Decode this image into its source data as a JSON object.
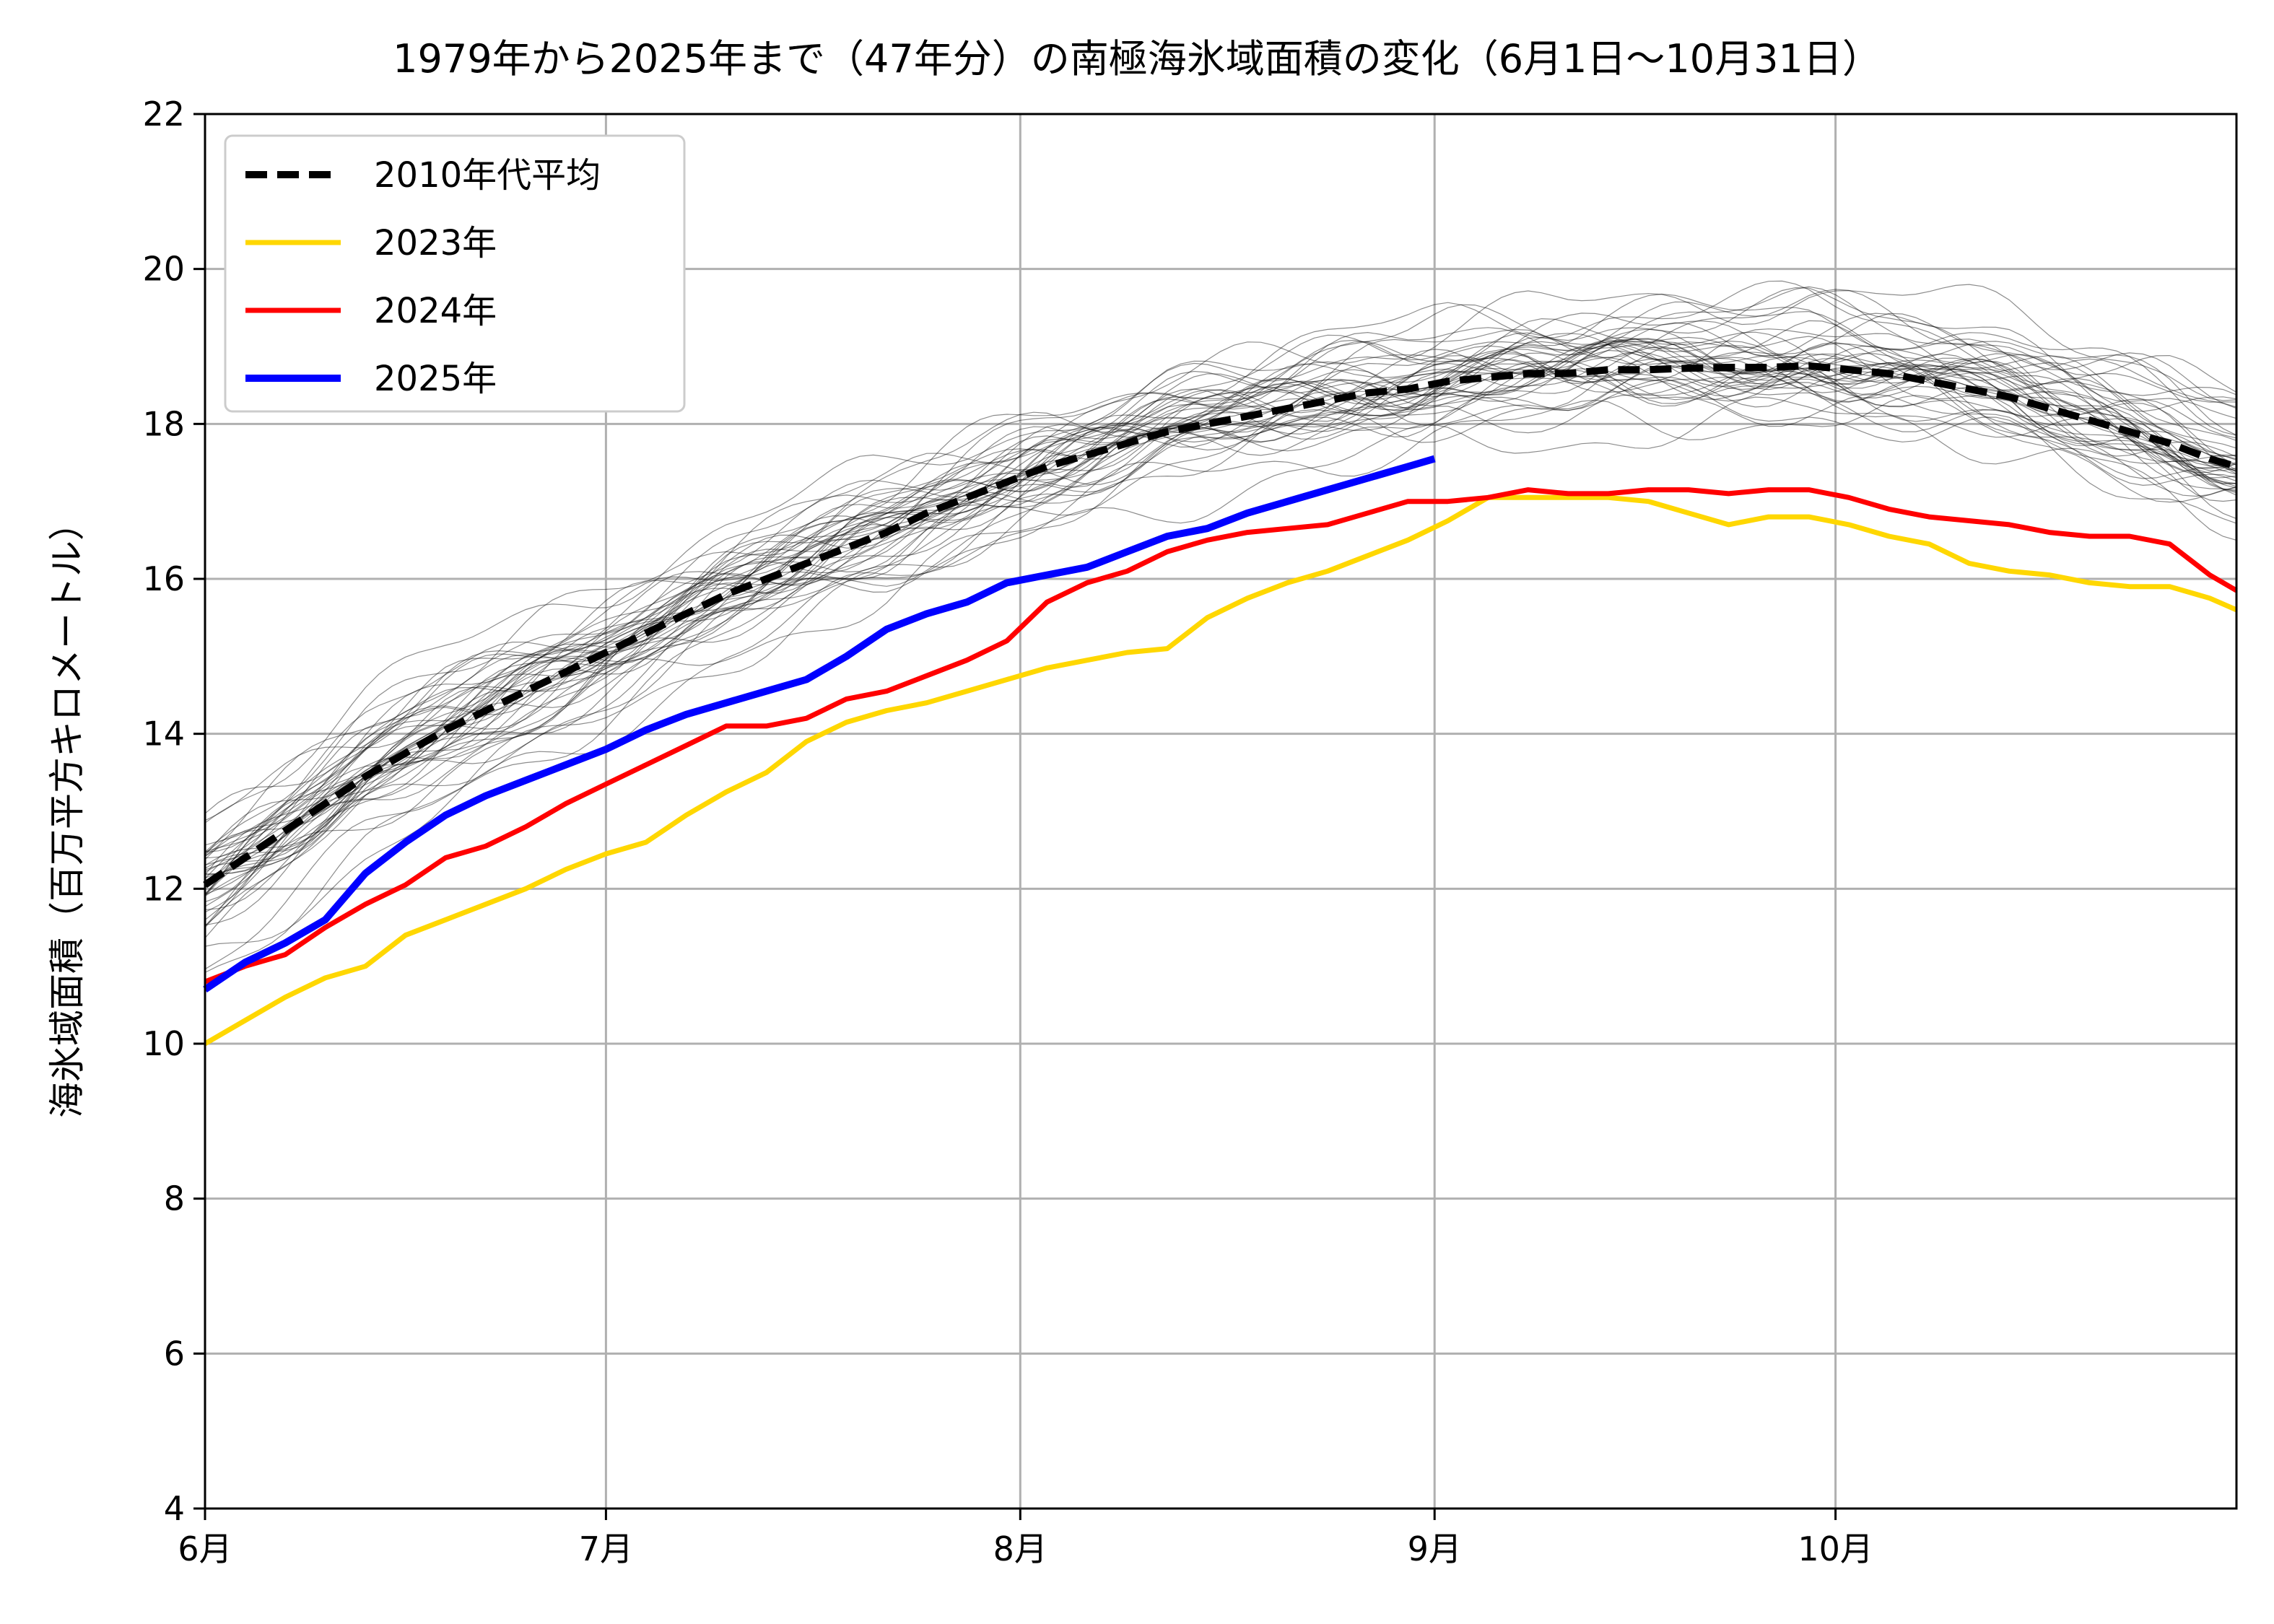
{
  "chart_data": {
    "type": "line",
    "title": "1979年から2025年まで（47年分）の南極海氷域面積の変化（6月1日〜10月31日）",
    "xlabel": "",
    "ylabel": "海氷域面積（百万平方キロメートル）",
    "x_unit": "day of year",
    "xlim": [
      152,
      304
    ],
    "ylim": [
      4,
      22
    ],
    "grid": true,
    "legend_position": "top-left",
    "x_ticks": [
      {
        "x": 152,
        "label": "6月"
      },
      {
        "x": 182,
        "label": "7月"
      },
      {
        "x": 213,
        "label": "8月"
      },
      {
        "x": 244,
        "label": "9月"
      },
      {
        "x": 274,
        "label": "10月"
      }
    ],
    "y_ticks": [
      4,
      6,
      8,
      10,
      12,
      14,
      16,
      18,
      20,
      22
    ],
    "series": [
      {
        "name": "2010年代平均",
        "color": "#000000",
        "style": "dashed",
        "x": [
          152,
          155,
          158,
          161,
          164,
          167,
          170,
          173,
          176,
          179,
          182,
          185,
          188,
          191,
          194,
          197,
          200,
          203,
          206,
          209,
          212,
          215,
          218,
          221,
          224,
          227,
          230,
          233,
          236,
          239,
          242,
          245,
          248,
          251,
          254,
          257,
          260,
          263,
          266,
          269,
          272,
          275,
          278,
          281,
          284,
          287,
          290,
          293,
          296,
          299,
          302,
          304
        ],
        "y": [
          12.05,
          12.4,
          12.75,
          13.1,
          13.45,
          13.75,
          14.05,
          14.3,
          14.55,
          14.8,
          15.05,
          15.3,
          15.55,
          15.8,
          16.0,
          16.2,
          16.4,
          16.6,
          16.85,
          17.05,
          17.25,
          17.45,
          17.6,
          17.75,
          17.9,
          18.0,
          18.1,
          18.2,
          18.3,
          18.4,
          18.45,
          18.55,
          18.6,
          18.65,
          18.65,
          18.7,
          18.7,
          18.72,
          18.73,
          18.73,
          18.75,
          18.7,
          18.65,
          18.55,
          18.45,
          18.35,
          18.2,
          18.05,
          17.9,
          17.75,
          17.55,
          17.45
        ]
      },
      {
        "name": "2023年",
        "color": "#ffd700",
        "style": "solid",
        "x": [
          152,
          155,
          158,
          161,
          164,
          167,
          170,
          173,
          176,
          179,
          182,
          185,
          188,
          191,
          194,
          197,
          200,
          203,
          206,
          209,
          212,
          215,
          218,
          221,
          224,
          227,
          230,
          233,
          236,
          239,
          242,
          245,
          248,
          251,
          254,
          257,
          260,
          263,
          266,
          269,
          272,
          275,
          278,
          281,
          284,
          287,
          290,
          293,
          296,
          299,
          302,
          304
        ],
        "y": [
          10.0,
          10.3,
          10.6,
          10.85,
          11.0,
          11.4,
          11.6,
          11.8,
          12.0,
          12.25,
          12.45,
          12.6,
          12.95,
          13.25,
          13.5,
          13.9,
          14.15,
          14.3,
          14.4,
          14.55,
          14.7,
          14.85,
          14.95,
          15.05,
          15.1,
          15.5,
          15.75,
          15.95,
          16.1,
          16.3,
          16.5,
          16.75,
          17.05,
          17.05,
          17.05,
          17.05,
          17.0,
          16.85,
          16.7,
          16.8,
          16.8,
          16.7,
          16.55,
          16.45,
          16.2,
          16.1,
          16.05,
          15.95,
          15.9,
          15.9,
          15.75,
          15.6
        ]
      },
      {
        "name": "2024年",
        "color": "#ff0000",
        "style": "solid",
        "x": [
          152,
          155,
          158,
          161,
          164,
          167,
          170,
          173,
          176,
          179,
          182,
          185,
          188,
          191,
          194,
          197,
          200,
          203,
          206,
          209,
          212,
          215,
          218,
          221,
          224,
          227,
          230,
          233,
          236,
          239,
          242,
          245,
          248,
          251,
          254,
          257,
          260,
          263,
          266,
          269,
          272,
          275,
          278,
          281,
          284,
          287,
          290,
          293,
          296,
          299,
          302,
          304
        ],
        "y": [
          10.8,
          11.0,
          11.15,
          11.5,
          11.8,
          12.05,
          12.4,
          12.55,
          12.8,
          13.1,
          13.35,
          13.6,
          13.85,
          14.1,
          14.1,
          14.2,
          14.45,
          14.55,
          14.75,
          14.95,
          15.2,
          15.7,
          15.95,
          16.1,
          16.35,
          16.5,
          16.6,
          16.65,
          16.7,
          16.85,
          17.0,
          17.0,
          17.05,
          17.15,
          17.1,
          17.1,
          17.15,
          17.15,
          17.1,
          17.15,
          17.15,
          17.05,
          16.9,
          16.8,
          16.75,
          16.7,
          16.6,
          16.55,
          16.55,
          16.45,
          16.05,
          15.85
        ]
      },
      {
        "name": "2025年",
        "color": "#0000ff",
        "style": "solid",
        "x": [
          152,
          155,
          158,
          161,
          164,
          167,
          170,
          173,
          176,
          179,
          182,
          185,
          188,
          191,
          194,
          197,
          200,
          203,
          206,
          209,
          212,
          215,
          218,
          221,
          224,
          227,
          230,
          233,
          236,
          239,
          242,
          244
        ],
        "y": [
          10.7,
          11.05,
          11.3,
          11.6,
          12.2,
          12.6,
          12.95,
          13.2,
          13.4,
          13.6,
          13.8,
          14.05,
          14.25,
          14.4,
          14.55,
          14.7,
          15.0,
          15.35,
          15.55,
          15.7,
          15.95,
          16.05,
          16.15,
          16.35,
          16.55,
          16.65,
          16.85,
          17.0,
          17.15,
          17.3,
          17.45,
          17.55
        ]
      }
    ],
    "background_series_note_count": 47
  }
}
